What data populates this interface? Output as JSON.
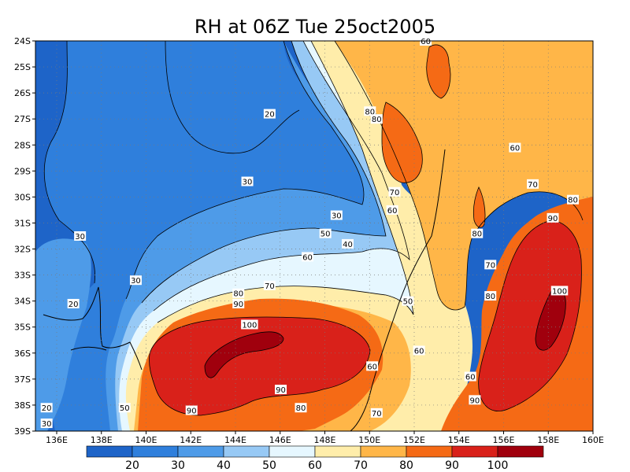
{
  "title": "RH at 06Z Tue 25oct2005",
  "map": {
    "x_ticks": [
      "136E",
      "138E",
      "140E",
      "142E",
      "144E",
      "146E",
      "148E",
      "150E",
      "152E",
      "154E",
      "156E",
      "158E",
      "160E"
    ],
    "y_ticks": [
      "24S",
      "25S",
      "26S",
      "27S",
      "28S",
      "29S",
      "30S",
      "31S",
      "32S",
      "33S",
      "34S",
      "35S",
      "36S",
      "37S",
      "38S",
      "39S"
    ],
    "lon_range": [
      135,
      160
    ],
    "lat_range": [
      -24,
      -39
    ],
    "grid": true,
    "contour_labels": [
      {
        "text": "20",
        "lon": 145.5,
        "lat": -26.8
      },
      {
        "text": "30",
        "lon": 144.5,
        "lat": -29.4
      },
      {
        "text": "30",
        "lon": 148.5,
        "lat": -30.7
      },
      {
        "text": "30",
        "lon": 137.0,
        "lat": -31.5
      },
      {
        "text": "30",
        "lon": 139.5,
        "lat": -33.2
      },
      {
        "text": "20",
        "lon": 136.7,
        "lat": -34.1
      },
      {
        "text": "20",
        "lon": 135.5,
        "lat": -38.1
      },
      {
        "text": "30",
        "lon": 135.5,
        "lat": -38.7
      },
      {
        "text": "50",
        "lon": 148.0,
        "lat": -31.4
      },
      {
        "text": "40",
        "lon": 149.0,
        "lat": -31.8
      },
      {
        "text": "60",
        "lon": 147.2,
        "lat": -32.3
      },
      {
        "text": "70",
        "lon": 145.5,
        "lat": -33.4
      },
      {
        "text": "80",
        "lon": 144.1,
        "lat": -33.7
      },
      {
        "text": "90",
        "lon": 144.1,
        "lat": -34.1
      },
      {
        "text": "100",
        "lon": 144.6,
        "lat": -34.9
      },
      {
        "text": "90",
        "lon": 146.0,
        "lat": -37.4
      },
      {
        "text": "80",
        "lon": 146.9,
        "lat": -38.1
      },
      {
        "text": "90",
        "lon": 142.0,
        "lat": -38.2
      },
      {
        "text": "50",
        "lon": 139.0,
        "lat": -38.1
      },
      {
        "text": "80",
        "lon": 150.0,
        "lat": -26.7
      },
      {
        "text": "80",
        "lon": 150.3,
        "lat": -27.0
      },
      {
        "text": "70",
        "lon": 151.1,
        "lat": -29.8
      },
      {
        "text": "60",
        "lon": 151.0,
        "lat": -30.5
      },
      {
        "text": "60",
        "lon": 156.5,
        "lat": -28.1
      },
      {
        "text": "70",
        "lon": 157.3,
        "lat": -29.5
      },
      {
        "text": "80",
        "lon": 159.1,
        "lat": -30.1
      },
      {
        "text": "90",
        "lon": 158.2,
        "lat": -30.8
      },
      {
        "text": "80",
        "lon": 154.8,
        "lat": -31.4
      },
      {
        "text": "70",
        "lon": 155.4,
        "lat": -32.6
      },
      {
        "text": "80",
        "lon": 155.4,
        "lat": -33.8
      },
      {
        "text": "100",
        "lon": 158.5,
        "lat": -33.6
      },
      {
        "text": "50",
        "lon": 151.7,
        "lat": -34.0
      },
      {
        "text": "60",
        "lon": 152.2,
        "lat": -35.9
      },
      {
        "text": "60",
        "lon": 150.1,
        "lat": -36.5
      },
      {
        "text": "60",
        "lon": 154.5,
        "lat": -36.9
      },
      {
        "text": "90",
        "lon": 154.7,
        "lat": -37.8
      },
      {
        "text": "70",
        "lon": 150.3,
        "lat": -38.3
      },
      {
        "text": "60",
        "lon": 152.5,
        "lat": -24.0
      }
    ]
  },
  "colorbar": {
    "labels": [
      "20",
      "30",
      "40",
      "50",
      "60",
      "70",
      "80",
      "90",
      "100"
    ],
    "colors": [
      "#1e64c8",
      "#2f7fdc",
      "#4e9be8",
      "#97c9f5",
      "#e6f7ff",
      "#ffedaa",
      "#ffb648",
      "#f56a15",
      "#d9211a",
      "#a0000d"
    ]
  }
}
